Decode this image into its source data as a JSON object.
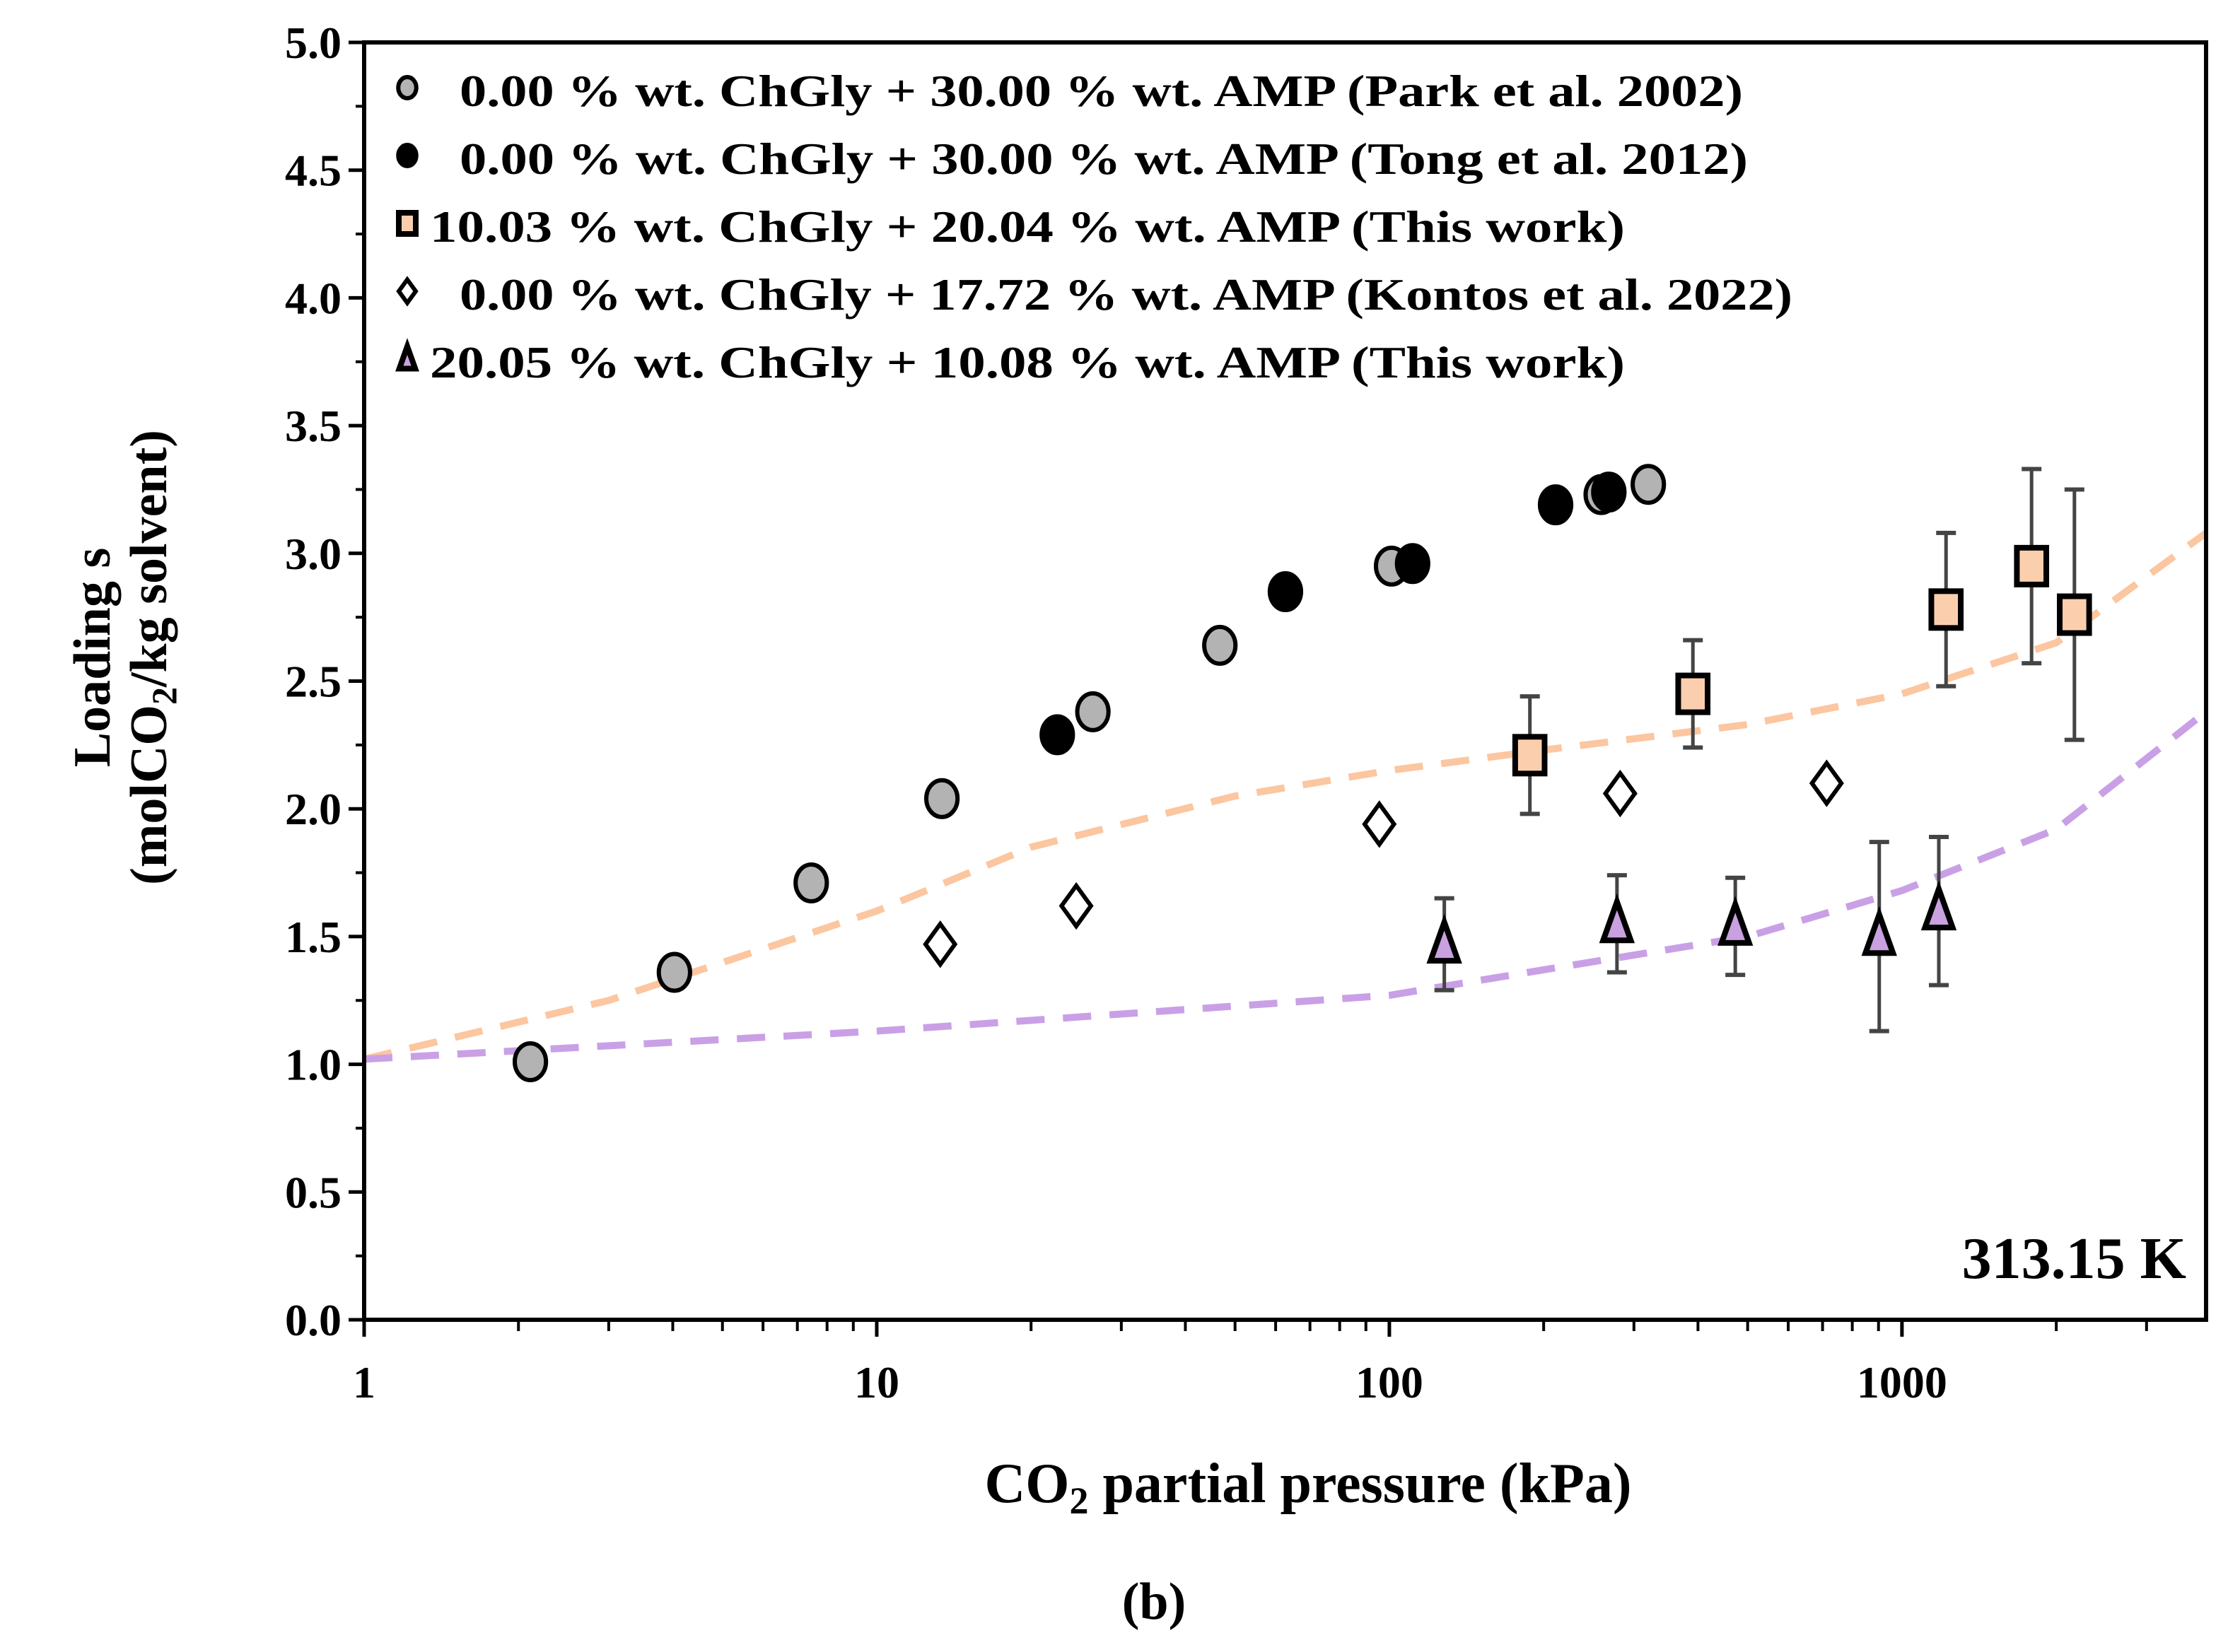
{
  "chart_data": {
    "type": "scatter",
    "title": "",
    "panel_label": "(b)",
    "annotation": "313.15 K",
    "xlabel": {
      "pre": "CO",
      "sub": "2",
      "post": " partial pressure (kPa)"
    },
    "ylabel": {
      "line1": "Loading s",
      "line2_pre": "(molCO",
      "line2_sub": "2",
      "line2_post": "/kg solvent)"
    },
    "xscale": "log",
    "xlim": [
      1,
      3920
    ],
    "ylim": [
      0,
      5
    ],
    "xticks": [
      1,
      10,
      100,
      1000
    ],
    "xtick_labels": [
      "1",
      "10",
      "100",
      "1000"
    ],
    "yticks": [
      0,
      0.5,
      1,
      1.5,
      2,
      2.5,
      3,
      3.5,
      4,
      4.5,
      5
    ],
    "ytick_labels": [
      "0.0",
      "0.5",
      "1.0",
      "1.5",
      "2.0",
      "2.5",
      "3.0",
      "3.5",
      "4.0",
      "4.5",
      "5.0"
    ],
    "grid": false,
    "legend_placement": "top-left",
    "series": [
      {
        "name": "0.00 % wt. ChGly + 30.00 % wt. AMP (Park et al. 2002)",
        "marker": "circle",
        "fill": "#b3b3b3",
        "x": [
          2.11,
          4.03,
          7.45,
          13.4,
          26.4,
          46.7,
          101,
          259,
          320
        ],
        "y": [
          1.01,
          1.36,
          1.71,
          2.04,
          2.38,
          2.64,
          2.95,
          3.23,
          3.27
        ]
      },
      {
        "name": "0.00 % wt. ChGly + 30.00 % wt. AMP (Tong et al. 2012)",
        "marker": "circle",
        "fill": "#000000",
        "x": [
          22.5,
          62.7,
          111,
          211,
          268
        ],
        "y": [
          2.29,
          2.85,
          2.96,
          3.19,
          3.24
        ]
      },
      {
        "name": "10.03 % wt. ChGly + 20.04 % wt. AMP (This work)",
        "marker": "square",
        "fill": "#fbcfae",
        "x": [
          188,
          391,
          1219,
          1790,
          2170
        ],
        "y": [
          2.21,
          2.45,
          2.78,
          2.95,
          2.76
        ],
        "err": [
          0.23,
          0.21,
          0.3,
          0.38,
          0.49
        ]
      },
      {
        "name": "0.00 % wt. ChGly + 17.72 % wt. AMP (Kontos et al. 2022)",
        "marker": "diamond",
        "fill": "#ffffff",
        "x": [
          13.3,
          24.5,
          95.6,
          282,
          713
        ],
        "y": [
          1.47,
          1.62,
          1.94,
          2.06,
          2.1
        ]
      },
      {
        "name": "20.05 % wt. ChGly + 10.08 % wt. AMP (This work)",
        "marker": "triangle",
        "fill": "#c9a0e0",
        "x": [
          128,
          278,
          473,
          903,
          1180
        ],
        "y": [
          1.47,
          1.55,
          1.54,
          1.5,
          1.6
        ],
        "err": [
          0.18,
          0.19,
          0.19,
          0.37,
          0.29
        ]
      }
    ],
    "model_curves": [
      {
        "name": "model-10.03-ChGly",
        "color": "#fbc6a0",
        "x": [
          1,
          3,
          10,
          20,
          50,
          100,
          200,
          500,
          1000,
          2000,
          3920
        ],
        "y": [
          1.02,
          1.25,
          1.6,
          1.85,
          2.05,
          2.15,
          2.23,
          2.33,
          2.45,
          2.65,
          3.08
        ]
      },
      {
        "name": "model-20.05-ChGly",
        "color": "#c9a0e6",
        "x": [
          1,
          10,
          100,
          200,
          500,
          1000,
          2000,
          3920
        ],
        "y": [
          1.02,
          1.13,
          1.27,
          1.37,
          1.5,
          1.68,
          1.92,
          2.38
        ]
      }
    ]
  }
}
